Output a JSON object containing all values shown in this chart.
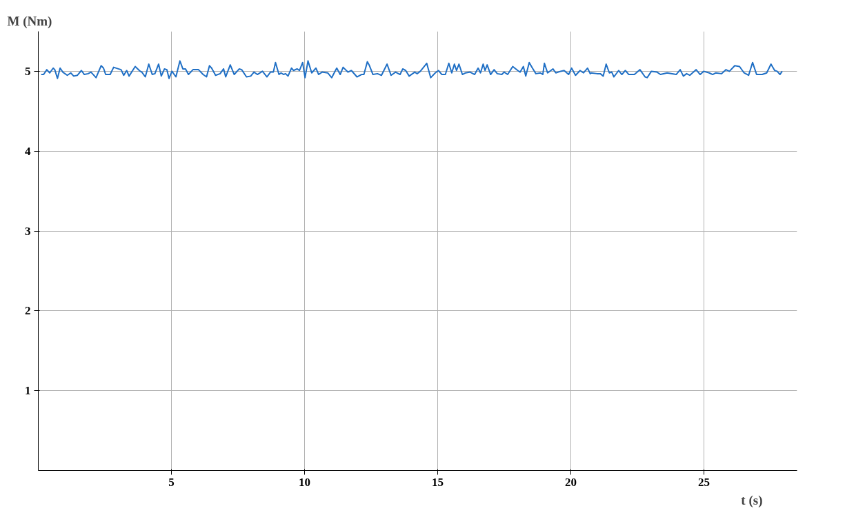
{
  "chart_data": {
    "type": "line",
    "xlabel": "t (s)",
    "ylabel": "M (Nm)",
    "xlim": [
      0,
      28.5
    ],
    "ylim": [
      0,
      5.5
    ],
    "xticks": [
      5,
      10,
      15,
      20,
      25
    ],
    "yticks": [
      1,
      2,
      3,
      4,
      5
    ],
    "grid": true,
    "marker": "none",
    "line_style": "solid",
    "series": [
      {
        "color": "#1f6fc5",
        "x": [
          0.11,
          0.2,
          0.32,
          0.43,
          0.56,
          0.62,
          0.72,
          0.82,
          0.92,
          1.09,
          1.22,
          1.33,
          1.47,
          1.62,
          1.73,
          1.87,
          1.98,
          2.17,
          2.36,
          2.45,
          2.53,
          2.7,
          2.83,
          3.11,
          3.21,
          3.32,
          3.41,
          3.64,
          3.83,
          3.89,
          4.02,
          4.15,
          4.28,
          4.38,
          4.52,
          4.62,
          4.74,
          4.83,
          4.91,
          5.02,
          5.17,
          5.32,
          5.43,
          5.53,
          5.64,
          5.81,
          6.02,
          6.19,
          6.32,
          6.43,
          6.51,
          6.66,
          6.83,
          6.96,
          7.04,
          7.21,
          7.36,
          7.55,
          7.64,
          7.82,
          7.98,
          8.1,
          8.23,
          8.42,
          8.59,
          8.72,
          8.83,
          8.91,
          9.04,
          9.12,
          9.21,
          9.29,
          9.38,
          9.51,
          9.59,
          9.72,
          9.81,
          9.93,
          10.02,
          10.13,
          10.27,
          10.43,
          10.53,
          10.66,
          10.87,
          11.02,
          11.21,
          11.34,
          11.45,
          11.63,
          11.76,
          11.97,
          12.14,
          12.23,
          12.36,
          12.44,
          12.57,
          12.74,
          12.89,
          13.1,
          13.25,
          13.42,
          13.59,
          13.69,
          13.8,
          13.93,
          14.14,
          14.23,
          14.35,
          14.59,
          14.74,
          14.91,
          15.03,
          15.16,
          15.29,
          15.42,
          15.53,
          15.63,
          15.71,
          15.8,
          15.93,
          16.05,
          16.22,
          16.39,
          16.52,
          16.61,
          16.71,
          16.78,
          16.86,
          16.99,
          17.12,
          17.24,
          17.41,
          17.5,
          17.63,
          17.82,
          18.01,
          18.1,
          18.22,
          18.31,
          18.44,
          18.56,
          18.69,
          18.86,
          18.95,
          19.01,
          19.13,
          19.33,
          19.44,
          19.62,
          19.75,
          19.92,
          20.03,
          20.18,
          20.35,
          20.48,
          20.63,
          20.73,
          20.77,
          20.99,
          21.11,
          21.22,
          21.33,
          21.45,
          21.54,
          21.62,
          21.8,
          21.92,
          22.05,
          22.18,
          22.39,
          22.6,
          22.79,
          22.87,
          23.03,
          23.24,
          23.37,
          23.62,
          23.96,
          24.11,
          24.23,
          24.35,
          24.47,
          24.71,
          24.86,
          24.99,
          25.2,
          25.33,
          25.45,
          25.66,
          25.83,
          25.96,
          26.16,
          26.34,
          26.51,
          26.68,
          26.83,
          26.98,
          27.19,
          27.36,
          27.52,
          27.66,
          27.75,
          27.86,
          27.94
        ],
        "values": [
          4.96,
          4.96,
          5.02,
          4.98,
          5.04,
          5.02,
          4.91,
          5.04,
          4.99,
          4.95,
          4.98,
          4.94,
          4.95,
          5.01,
          4.96,
          4.97,
          4.99,
          4.92,
          5.07,
          5.04,
          4.96,
          4.96,
          5.05,
          5.02,
          4.95,
          5.01,
          4.94,
          5.06,
          5.0,
          4.99,
          4.93,
          5.09,
          4.96,
          4.97,
          5.09,
          4.94,
          5.03,
          5.02,
          4.91,
          5.0,
          4.93,
          5.13,
          5.03,
          5.03,
          4.96,
          5.02,
          5.02,
          4.96,
          4.93,
          5.07,
          5.04,
          4.95,
          4.97,
          5.03,
          4.93,
          5.08,
          4.96,
          5.03,
          5.02,
          4.93,
          4.94,
          4.99,
          4.96,
          5.0,
          4.93,
          4.99,
          4.99,
          5.11,
          4.96,
          4.98,
          4.96,
          4.97,
          4.94,
          5.04,
          5.01,
          5.03,
          5.01,
          5.11,
          4.92,
          5.13,
          4.98,
          5.04,
          4.96,
          4.99,
          4.98,
          4.92,
          5.04,
          4.96,
          5.05,
          4.99,
          5.01,
          4.93,
          4.96,
          4.96,
          5.12,
          5.07,
          4.96,
          4.97,
          4.95,
          5.09,
          4.95,
          4.99,
          4.96,
          5.03,
          5.01,
          4.94,
          4.99,
          4.97,
          5.0,
          5.1,
          4.92,
          4.98,
          5.01,
          4.96,
          4.96,
          5.1,
          4.98,
          5.09,
          5.01,
          5.09,
          4.96,
          4.98,
          4.99,
          4.96,
          5.04,
          4.98,
          5.09,
          5.01,
          5.08,
          4.96,
          5.02,
          4.97,
          4.96,
          4.99,
          4.96,
          5.06,
          5.01,
          4.99,
          5.06,
          4.94,
          5.11,
          5.04,
          4.97,
          4.98,
          4.96,
          5.1,
          4.98,
          5.03,
          4.98,
          5.0,
          5.01,
          4.96,
          5.04,
          4.95,
          5.01,
          4.98,
          5.04,
          4.97,
          4.98,
          4.97,
          4.97,
          4.94,
          5.09,
          4.98,
          4.99,
          4.93,
          5.01,
          4.96,
          5.01,
          4.96,
          4.96,
          5.02,
          4.93,
          4.92,
          5.0,
          4.99,
          4.96,
          4.98,
          4.96,
          5.02,
          4.94,
          4.97,
          4.95,
          5.02,
          4.96,
          5.0,
          4.98,
          4.96,
          4.98,
          4.97,
          5.02,
          5.0,
          5.07,
          5.06,
          4.98,
          4.95,
          5.11,
          4.96,
          4.96,
          4.98,
          5.09,
          5.01,
          5.0,
          4.96,
          5.0
        ]
      }
    ]
  }
}
